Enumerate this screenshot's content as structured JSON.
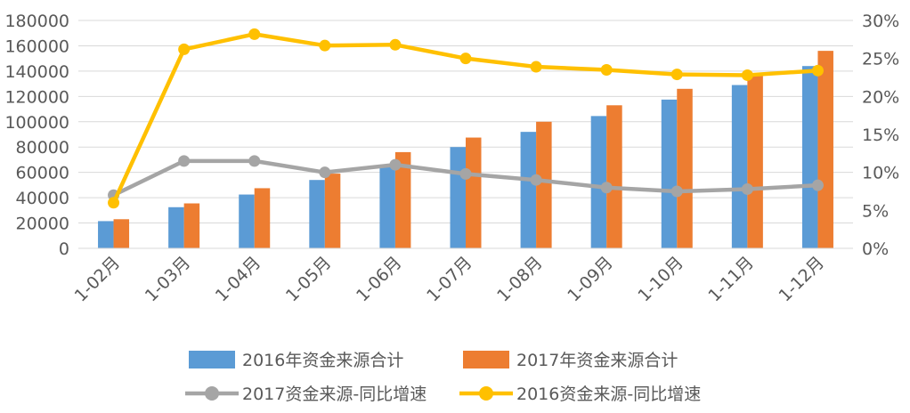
{
  "chart_data": {
    "type": "bar",
    "categories": [
      "1-02月",
      "1-03月",
      "1-04月",
      "1-05月",
      "1-06月",
      "1-07月",
      "1-08月",
      "1-09月",
      "1-10月",
      "1-11月",
      "1-12月"
    ],
    "y_left": {
      "ylim": [
        0,
        180000
      ],
      "ticks": [
        "0",
        "20000",
        "40000",
        "60000",
        "80000",
        "100000",
        "120000",
        "140000",
        "160000",
        "180000"
      ]
    },
    "y_right": {
      "ylim": [
        0,
        30
      ],
      "ticks": [
        "0%",
        "5%",
        "10%",
        "15%",
        "20%",
        "25%",
        "30%"
      ]
    },
    "grid": true,
    "legend_position": "bottom",
    "series": [
      {
        "name": "2016年资金来源合计",
        "type": "bar",
        "axis": "left",
        "color": "#5b9bd5",
        "values": [
          21500,
          32500,
          42500,
          54000,
          66000,
          80000,
          92000,
          104500,
          117500,
          129000,
          144000
        ]
      },
      {
        "name": "2017年资金来源合计",
        "type": "bar",
        "axis": "left",
        "color": "#ed7d31",
        "values": [
          23000,
          35500,
          47500,
          59000,
          76000,
          87500,
          100000,
          113000,
          126000,
          138000,
          156000
        ]
      },
      {
        "name": "2017资金来源-同比增速",
        "type": "line",
        "axis": "right",
        "color": "#a5a5a5",
        "values": [
          7.0,
          11.5,
          11.5,
          10.0,
          11.0,
          9.8,
          9.0,
          8.0,
          7.5,
          7.8,
          8.3
        ]
      },
      {
        "name": "2016资金来源-同比增速",
        "type": "line",
        "axis": "right",
        "color": "#ffc000",
        "values": [
          6.0,
          26.2,
          28.2,
          26.7,
          26.8,
          25.0,
          23.9,
          23.5,
          22.9,
          22.8,
          23.4
        ]
      }
    ]
  }
}
